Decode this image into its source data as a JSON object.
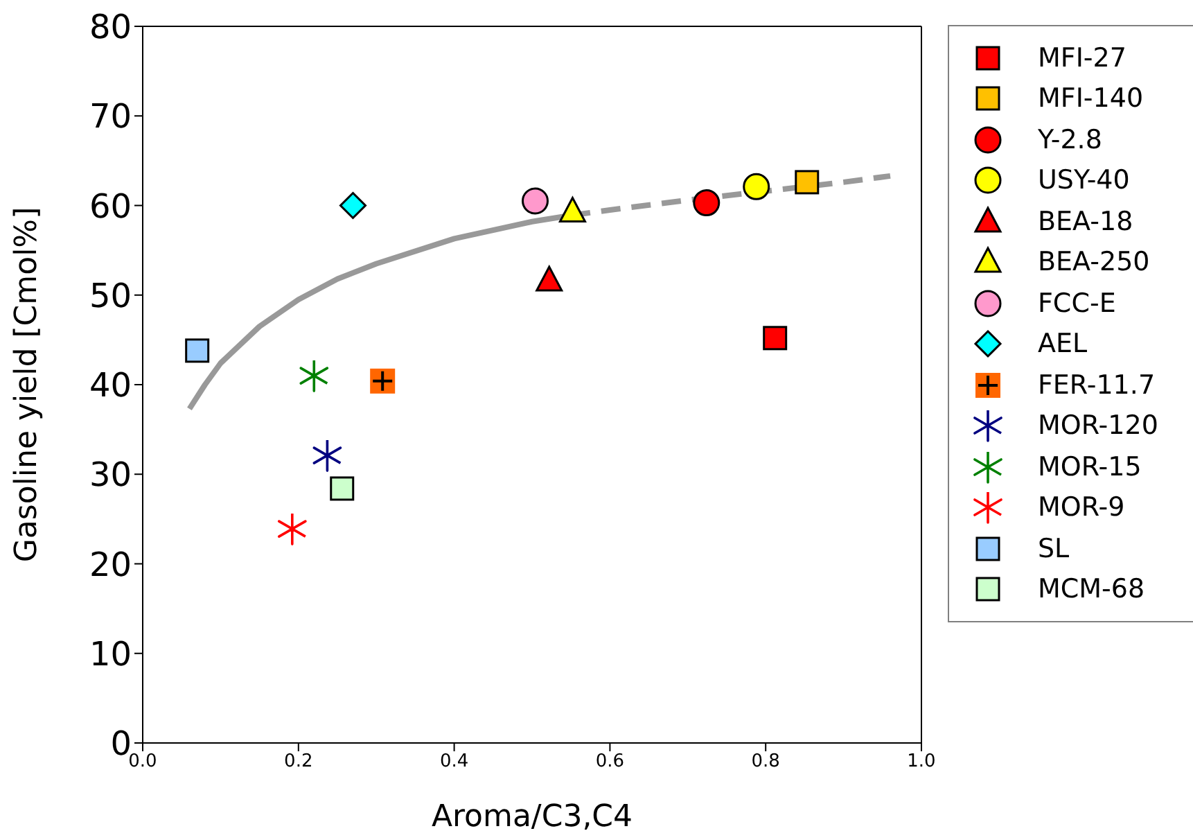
{
  "chart_data": {
    "type": "scatter",
    "xlabel": "Aroma/C3,C4",
    "ylabel": "Gasoline yield [Cmol%]",
    "xlim": [
      0,
      1
    ],
    "xticks": [
      {
        "value": 0,
        "label": "0.0"
      },
      {
        "value": 0.2,
        "label": "0.2"
      },
      {
        "value": 0.4,
        "label": "0.4"
      },
      {
        "value": 0.6,
        "label": "0.6"
      },
      {
        "value": 0.8,
        "label": "0.8"
      },
      {
        "value": 1,
        "label": "1.0"
      }
    ],
    "ylim": [
      0,
      80
    ],
    "yticks": [
      0,
      10,
      20,
      30,
      40,
      50,
      60,
      70,
      80
    ],
    "grid": false,
    "legend": "right",
    "series": [
      {
        "type": "line",
        "color": "#999999",
        "line_style": "solid",
        "marker": "none",
        "x": [
          0.06,
          0.08,
          0.1,
          0.15,
          0.2,
          0.25,
          0.3,
          0.4,
          0.5,
          0.55
        ],
        "values": [
          37.3,
          40,
          42.4,
          46.5,
          49.5,
          51.8,
          53.5,
          56.3,
          58.2,
          58.9
        ]
      },
      {
        "type": "line",
        "color": "#999999",
        "line_style": "dashed",
        "marker": "none",
        "x": [
          0.55,
          0.6,
          0.7,
          0.8,
          0.9,
          0.96
        ],
        "values": [
          58.9,
          59.5,
          60.6,
          61.6,
          62.6,
          63.3
        ]
      },
      {
        "name": "MFI-27",
        "color": "#ff0000",
        "marker": "square",
        "x": [
          0.812
        ],
        "values": [
          45.2
        ]
      },
      {
        "name": "MFI-140",
        "color": "#ffc000",
        "marker": "square",
        "x": [
          0.853
        ],
        "values": [
          62.6
        ]
      },
      {
        "name": "Y-2.8",
        "color": "#ff0000",
        "marker": "circle",
        "x": [
          0.724
        ],
        "values": [
          60.3
        ]
      },
      {
        "name": "USY-40",
        "color": "#ffff00",
        "marker": "circle",
        "x": [
          0.788
        ],
        "values": [
          62.1
        ]
      },
      {
        "name": "BEA-18",
        "color": "#ff0000",
        "marker": "triangle",
        "x": [
          0.522
        ],
        "values": [
          51.6
        ]
      },
      {
        "name": "BEA-250",
        "color": "#ffff00",
        "marker": "triangle",
        "x": [
          0.552
        ],
        "values": [
          59.3
        ]
      },
      {
        "name": "FCC-E",
        "color": "#ff99cc",
        "marker": "circle",
        "x": [
          0.504
        ],
        "values": [
          60.5
        ]
      },
      {
        "name": "AEL",
        "color": "#00ffff",
        "marker": "diamond",
        "x": [
          0.27
        ],
        "values": [
          60
        ]
      },
      {
        "name": "FER-11.7",
        "color": "#ff6600",
        "marker": "square",
        "x": [
          0.308
        ],
        "values": [
          40.4
        ]
      },
      {
        "name": "MOR-120",
        "color": "#000080",
        "marker": "cross",
        "x": [
          0.237
        ],
        "values": [
          32.1
        ]
      },
      {
        "name": "MOR-15",
        "color": "#008000",
        "marker": "cross",
        "x": [
          0.22
        ],
        "values": [
          41
        ]
      },
      {
        "name": "MOR-9",
        "color": "#ff0000",
        "marker": "cross",
        "x": [
          0.192
        ],
        "values": [
          23.9
        ]
      },
      {
        "name": "SL",
        "color": "#99ccff",
        "marker": "square",
        "x": [
          0.07
        ],
        "values": [
          43.8
        ]
      },
      {
        "name": "MCM-68",
        "color": "#ccffcc",
        "marker": "square",
        "x": [
          0.256
        ],
        "values": [
          28.4
        ]
      }
    ]
  }
}
